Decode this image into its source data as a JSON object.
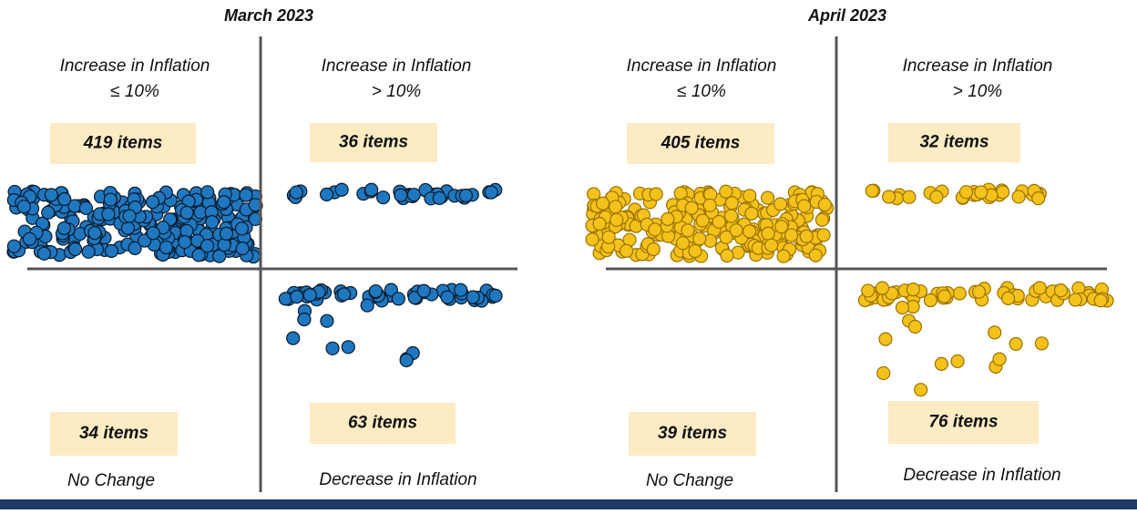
{
  "panels": [
    {
      "title": "March 2023",
      "quadrants": [
        {
          "label": [
            "Increase in Inflation",
            "≤ 10%"
          ],
          "count": "419 items"
        },
        {
          "label": [
            "Increase in Inflation",
            "> 10%"
          ],
          "count": "36 items"
        },
        {
          "label": [
            "No Change"
          ],
          "count": "34 items"
        },
        {
          "label": [
            "Decrease in Inflation"
          ],
          "count": "63 items"
        }
      ]
    },
    {
      "title": "April 2023",
      "quadrants": [
        {
          "label": [
            "Increase in Inflation",
            "≤ 10%"
          ],
          "count": "405 items"
        },
        {
          "label": [
            "Increase in Inflation",
            "> 10%"
          ],
          "count": "32 items"
        },
        {
          "label": [
            "No Change"
          ],
          "count": "39 items"
        },
        {
          "label": [
            "Decrease in Inflation"
          ],
          "count": "76 items"
        }
      ]
    }
  ]
}
